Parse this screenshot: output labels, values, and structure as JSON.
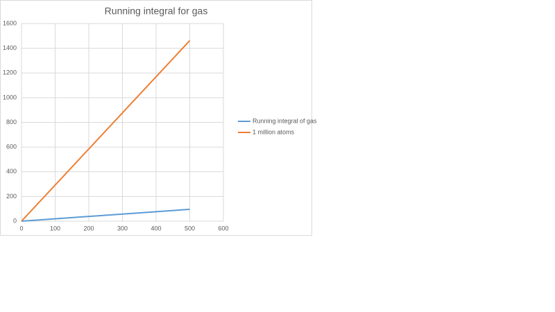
{
  "chart_data": {
    "type": "line",
    "title": "Running integral for gas",
    "x": [
      0,
      500
    ],
    "series": [
      {
        "name": "Running integral of gas",
        "color": "#5b9bd5",
        "values": [
          0,
          96
        ]
      },
      {
        "name": "1 million atoms",
        "color": "#ed7d31",
        "values": [
          0,
          1462
        ]
      }
    ],
    "xlim": [
      0,
      600
    ],
    "xticks": [
      0,
      100,
      200,
      300,
      400,
      500,
      600
    ],
    "ylim": [
      0,
      1600
    ],
    "yticks": [
      0,
      200,
      400,
      600,
      800,
      1000,
      1200,
      1400,
      1600
    ],
    "grid": true,
    "legend": "right"
  }
}
